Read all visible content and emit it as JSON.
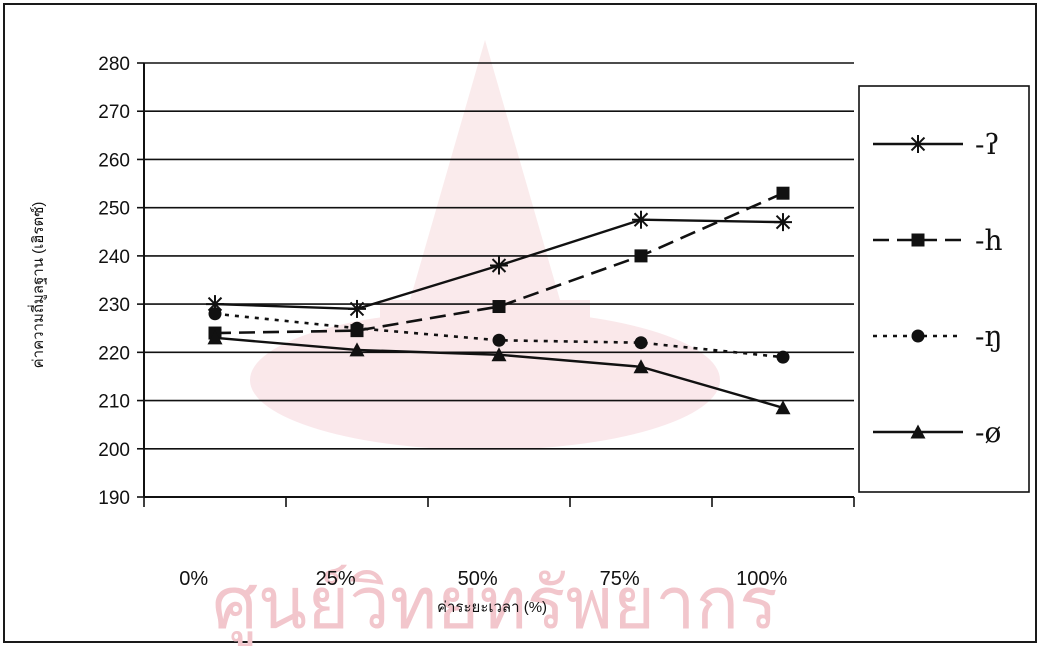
{
  "chart_data": {
    "type": "line",
    "title": "",
    "xlabel": "ค่าระยะเวลา (%)",
    "ylabel": "ค่าความถี่มูลฐาน (เฮิรตซ์)",
    "categories": [
      "0%",
      "25%",
      "50%",
      "75%",
      "100%"
    ],
    "ylim": [
      190,
      280
    ],
    "yticks": [
      190,
      200,
      210,
      220,
      230,
      240,
      250,
      260,
      270,
      280
    ],
    "grid": true,
    "legend_position": "right",
    "series": [
      {
        "name": "-ʔ",
        "marker": "star",
        "dash": "solid",
        "values": [
          230,
          229,
          238,
          247.5,
          247
        ]
      },
      {
        "name": "-h",
        "marker": "square",
        "dash": "dash",
        "values": [
          224,
          224.5,
          229.5,
          240,
          253
        ]
      },
      {
        "name": "-ŋ",
        "marker": "circle",
        "dash": "dot",
        "values": [
          228,
          225,
          222.5,
          222,
          219
        ]
      },
      {
        "name": "-ø",
        "marker": "triangle",
        "dash": "solid",
        "values": [
          223,
          220.5,
          219.5,
          217,
          208.5
        ]
      }
    ]
  },
  "watermark": {
    "text": "ศูนย์วิทยทรัพยากร",
    "color": "#f2c6cc"
  }
}
